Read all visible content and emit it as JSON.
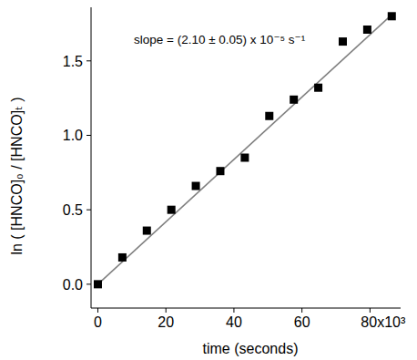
{
  "chart_data": {
    "type": "scatter",
    "annotation": "slope = (2.10 ± 0.05) x 10⁻⁵ s⁻¹",
    "x_label": "time (seconds)",
    "y_label": "ln ( [HNCO]₀ / [HNCO]ₜ )",
    "xlim": [
      -2000,
      89000
    ],
    "ylim": [
      -0.16,
      1.86
    ],
    "xticks": [
      0,
      {
        "value": 20000,
        "label": "20"
      },
      {
        "value": 40000,
        "label": "40"
      },
      {
        "value": 60000,
        "label": "60"
      },
      {
        "value": 80000,
        "label": "80x10³"
      }
    ],
    "yticks": [
      {
        "value": 0,
        "label": "0.0"
      },
      0.5,
      {
        "value": 1,
        "label": "1.0"
      },
      1.5
    ],
    "grid": false,
    "series": [
      {
        "type": "scatter",
        "marker": "square",
        "color": "#000000",
        "x": [
          0,
          7200,
          14400,
          21600,
          28800,
          36000,
          43200,
          50400,
          57600,
          64800,
          72000,
          79200,
          86400
        ],
        "values": [
          0,
          0.18,
          0.36,
          0.5,
          0.66,
          0.76,
          0.85,
          1.13,
          1.24,
          1.32,
          1.63,
          1.71,
          1.8
        ]
      },
      {
        "type": "line",
        "line_style": "solid",
        "color": "#808080",
        "x": [
          0,
          86400
        ],
        "values": [
          0,
          1.81
        ]
      }
    ]
  }
}
